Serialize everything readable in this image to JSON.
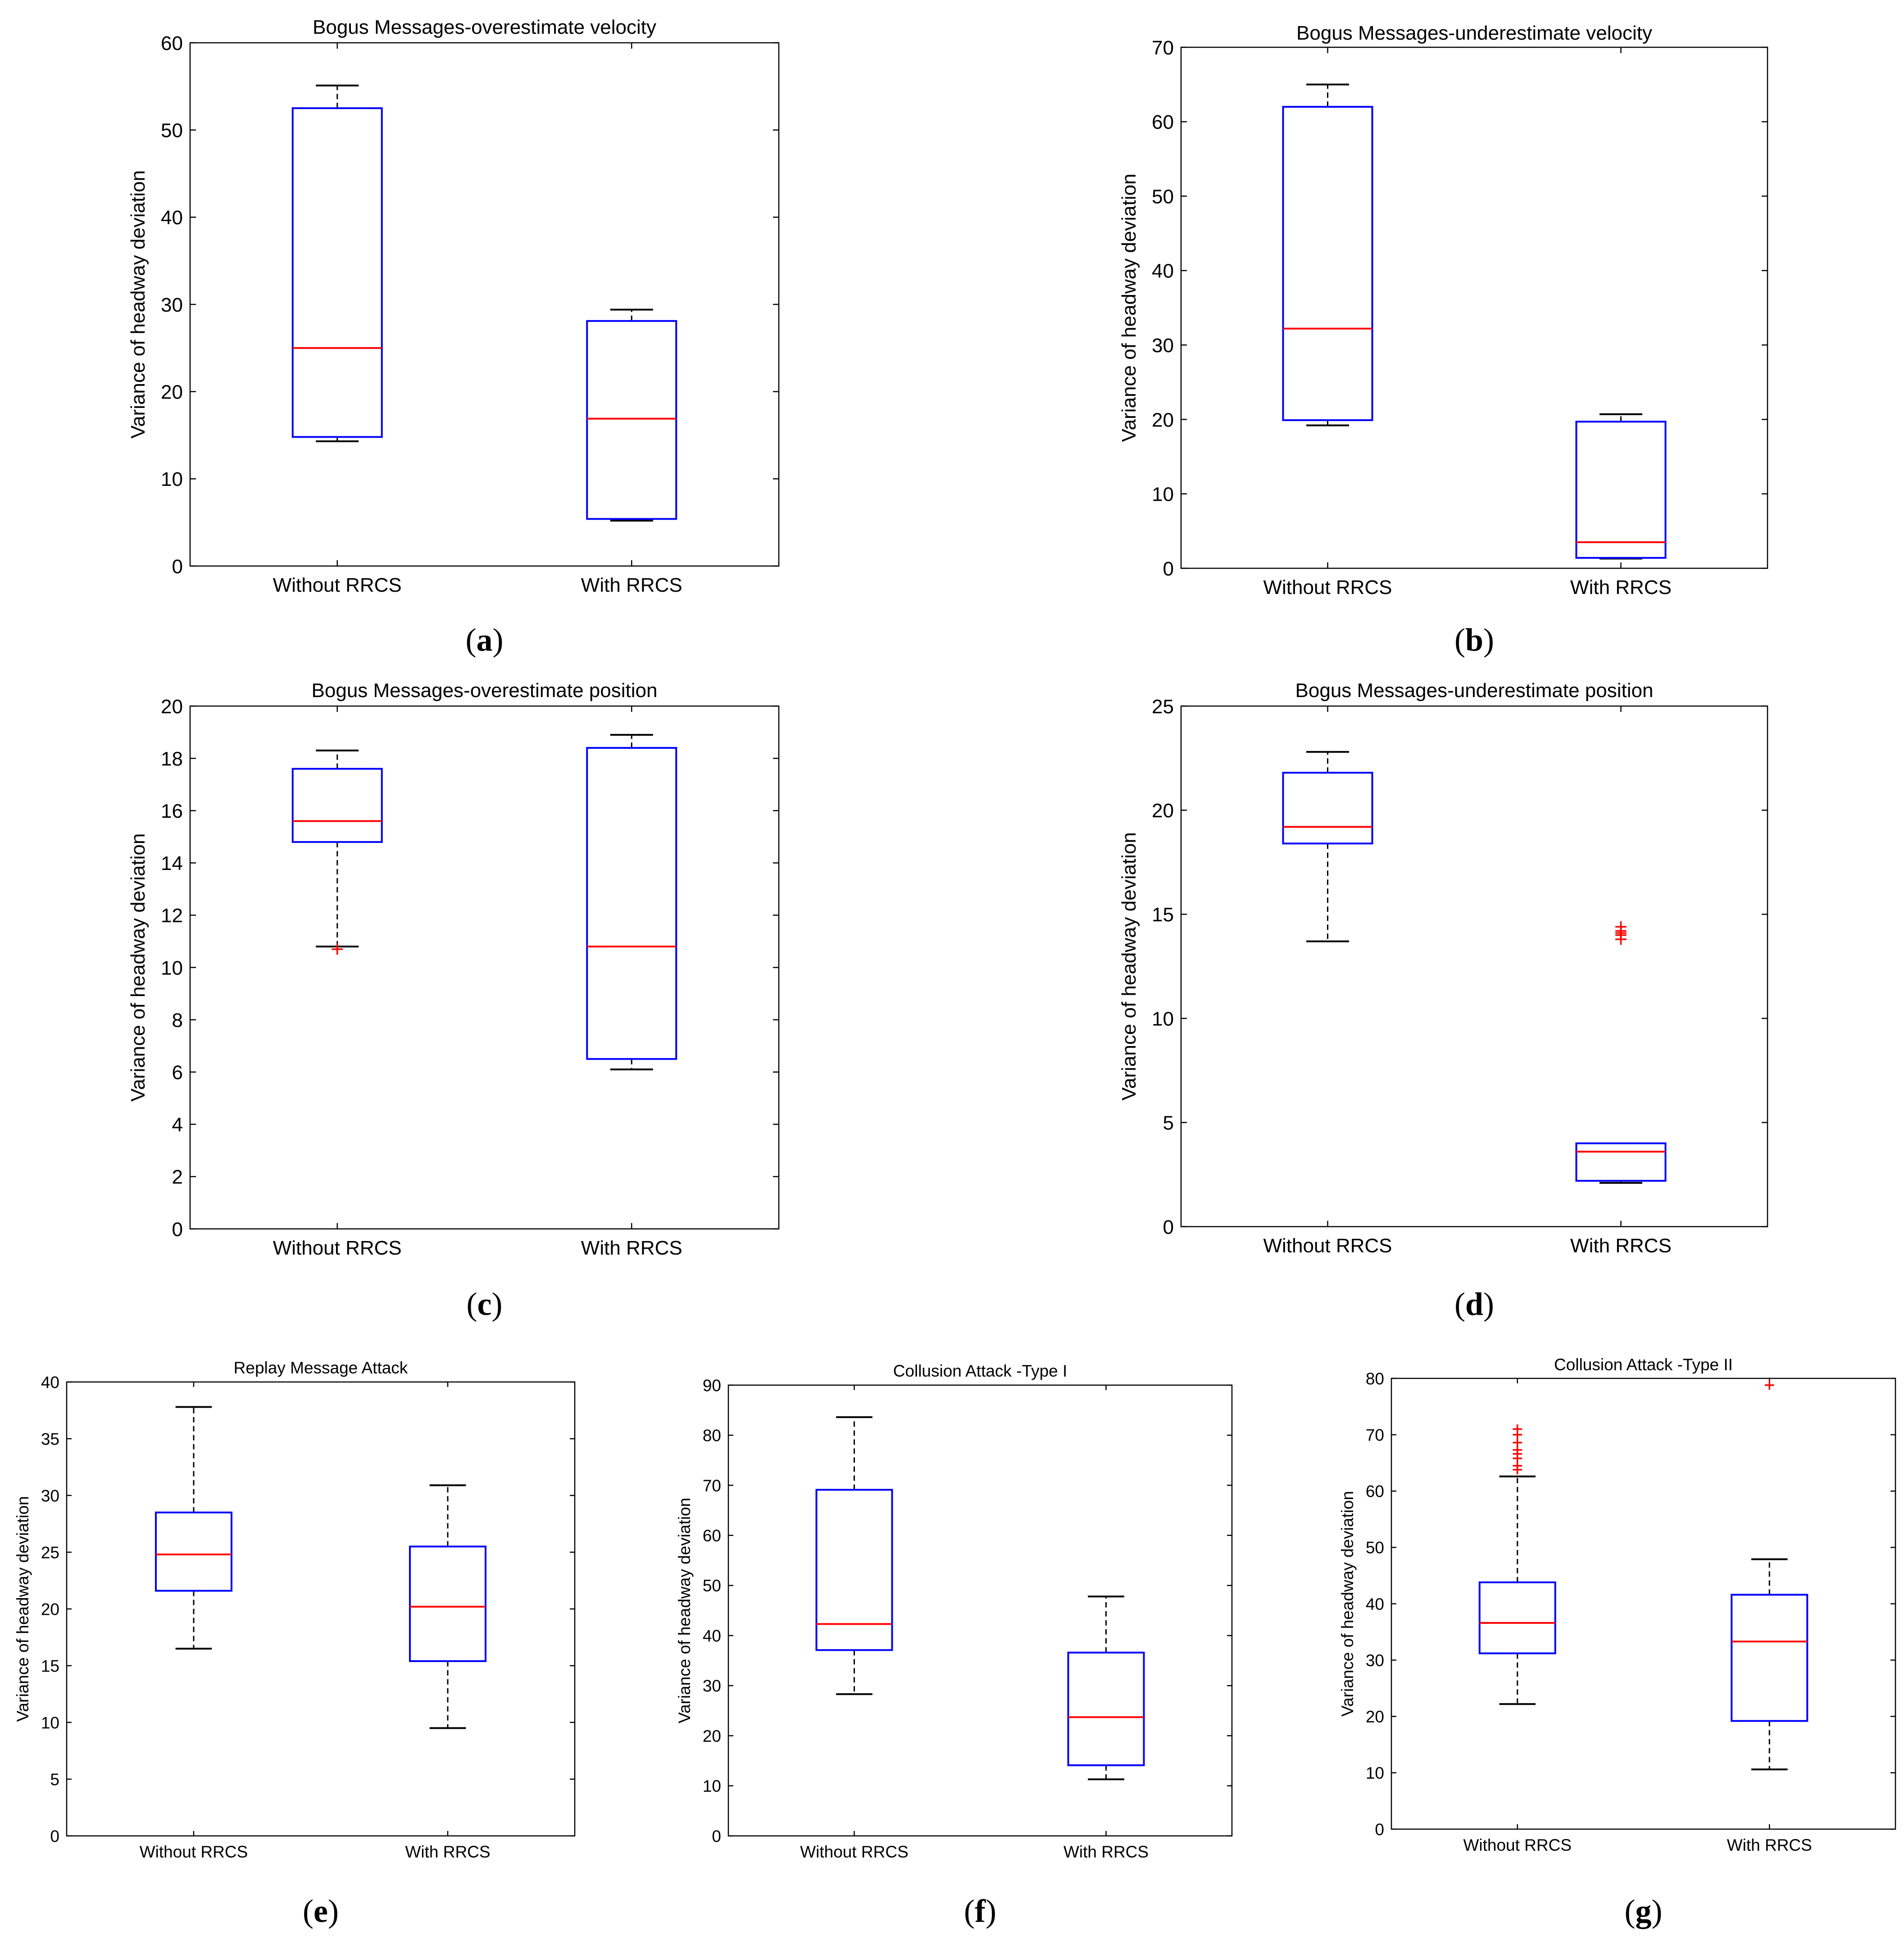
{
  "colors": {
    "box": "#0000ff",
    "median": "#ff0000",
    "whisker": "#000000",
    "outlier": "#ff0000",
    "axes": "#000000"
  },
  "chart_data": [
    {
      "panel_label": "(a)",
      "type": "box",
      "title": "Bogus Messages-overestimate velocity",
      "xlabel": "",
      "ylabel": "Variance of headway deviation",
      "categories": [
        "Without RRCS",
        "With RRCS"
      ],
      "ylim": [
        0,
        60
      ],
      "yticks": [
        0,
        10,
        20,
        30,
        40,
        50,
        60
      ],
      "boxes": [
        {
          "whisker_low": 14.3,
          "q1": 14.8,
          "median": 25.0,
          "q3": 52.5,
          "whisker_high": 55.1,
          "outliers": []
        },
        {
          "whisker_low": 5.2,
          "q1": 5.4,
          "median": 16.9,
          "q3": 28.1,
          "whisker_high": 29.4,
          "outliers": []
        }
      ]
    },
    {
      "panel_label": "(b)",
      "type": "box",
      "title": "Bogus Messages-underestimate velocity",
      "xlabel": "",
      "ylabel": "Variance of headway deviation",
      "categories": [
        "Without RRCS",
        "With RRCS"
      ],
      "ylim": [
        0,
        70
      ],
      "yticks": [
        0,
        10,
        20,
        30,
        40,
        50,
        60,
        70
      ],
      "boxes": [
        {
          "whisker_low": 19.2,
          "q1": 19.9,
          "median": 32.2,
          "q3": 62.0,
          "whisker_high": 65.0,
          "outliers": []
        },
        {
          "whisker_low": 1.3,
          "q1": 1.4,
          "median": 3.5,
          "q3": 19.7,
          "whisker_high": 20.7,
          "outliers": []
        }
      ]
    },
    {
      "panel_label": "(c)",
      "type": "box",
      "title": "Bogus Messages-overestimate position",
      "xlabel": "",
      "ylabel": "Variance of headway deviation",
      "categories": [
        "Without RRCS",
        "With RRCS"
      ],
      "ylim": [
        0,
        20
      ],
      "yticks": [
        0,
        2,
        4,
        6,
        8,
        10,
        12,
        14,
        16,
        18,
        20
      ],
      "boxes": [
        {
          "whisker_low": 10.8,
          "q1": 14.8,
          "median": 15.6,
          "q3": 17.6,
          "whisker_high": 18.3,
          "outliers": [
            10.7
          ]
        },
        {
          "whisker_low": 6.1,
          "q1": 6.5,
          "median": 10.8,
          "q3": 18.4,
          "whisker_high": 18.9,
          "outliers": []
        }
      ]
    },
    {
      "panel_label": "(d)",
      "type": "box",
      "title": "Bogus Messages-underestimate position",
      "xlabel": "",
      "ylabel": "Variance of headway deviation",
      "categories": [
        "Without RRCS",
        "With RRCS"
      ],
      "ylim": [
        0,
        25
      ],
      "yticks": [
        0,
        5,
        10,
        15,
        20,
        25
      ],
      "boxes": [
        {
          "whisker_low": 13.7,
          "q1": 18.4,
          "median": 19.2,
          "q3": 21.8,
          "whisker_high": 22.8,
          "outliers": []
        },
        {
          "whisker_low": 2.1,
          "q1": 2.2,
          "median": 3.6,
          "q3": 4.0,
          "whisker_high": 4.0,
          "outliers": [
            13.8,
            14.0,
            14.1,
            14.2,
            14.4
          ]
        }
      ]
    },
    {
      "panel_label": "(e)",
      "type": "box",
      "title": "Replay Message Attack",
      "xlabel": "",
      "ylabel": "Variance of headway deviation",
      "categories": [
        "Without RRCS",
        "With RRCS"
      ],
      "ylim": [
        0,
        40
      ],
      "yticks": [
        0,
        5,
        10,
        15,
        20,
        25,
        30,
        35,
        40
      ],
      "boxes": [
        {
          "whisker_low": 16.5,
          "q1": 21.6,
          "median": 24.8,
          "q3": 28.5,
          "whisker_high": 37.8,
          "outliers": []
        },
        {
          "whisker_low": 9.5,
          "q1": 15.4,
          "median": 20.2,
          "q3": 25.5,
          "whisker_high": 30.9,
          "outliers": []
        }
      ]
    },
    {
      "panel_label": "(f)",
      "type": "box",
      "title": "Collusion Attack -Type I",
      "xlabel": "",
      "ylabel": "Variance of headway deviation",
      "categories": [
        "Without RRCS",
        "With RRCS"
      ],
      "ylim": [
        0,
        90
      ],
      "yticks": [
        0,
        10,
        20,
        30,
        40,
        50,
        60,
        70,
        80,
        90
      ],
      "boxes": [
        {
          "whisker_low": 28.3,
          "q1": 37.1,
          "median": 42.3,
          "q3": 69.1,
          "whisker_high": 83.6,
          "outliers": []
        },
        {
          "whisker_low": 11.3,
          "q1": 14.1,
          "median": 23.7,
          "q3": 36.6,
          "whisker_high": 47.8,
          "outliers": []
        }
      ]
    },
    {
      "panel_label": "(g)",
      "type": "box",
      "title": "Collusion Attack -Type II",
      "xlabel": "",
      "ylabel": "Variance of headway deviation",
      "categories": [
        "Without RRCS",
        "With RRCS"
      ],
      "ylim": [
        0,
        80
      ],
      "yticks": [
        0,
        10,
        20,
        30,
        40,
        50,
        60,
        70,
        80
      ],
      "boxes": [
        {
          "whisker_low": 22.2,
          "q1": 31.2,
          "median": 36.6,
          "q3": 43.8,
          "whisker_high": 62.6,
          "outliers": [
            63.8,
            64.5,
            65.8,
            66.6,
            67.3,
            68.6,
            70.0,
            71.0
          ]
        },
        {
          "whisker_low": 10.6,
          "q1": 19.2,
          "median": 33.3,
          "q3": 41.6,
          "whisker_high": 47.9,
          "outliers": [
            78.8
          ]
        }
      ]
    }
  ]
}
